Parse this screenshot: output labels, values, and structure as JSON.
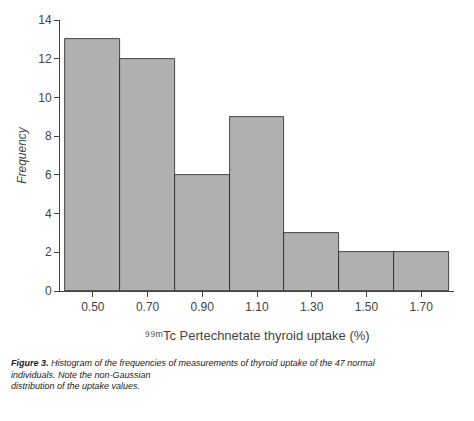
{
  "chart_data": {
    "type": "histogram",
    "bins": [
      0.4,
      0.6,
      0.8,
      1.0,
      1.2,
      1.4,
      1.6,
      1.8
    ],
    "values": [
      13,
      12,
      6,
      9,
      3,
      2,
      2
    ],
    "color": "#b0b0b0",
    "xlabel": "⁹⁹ᵐTc Pertechnetate thyroid uptake (%)",
    "ylabel": "Frequency",
    "xlim": [
      0.38,
      1.82
    ],
    "xticks": [
      {
        "value": 0.5,
        "label": "0.50"
      },
      {
        "value": 0.7,
        "label": "0.70"
      },
      {
        "value": 0.9,
        "label": "0.90"
      },
      {
        "value": 1.1,
        "label": "1.10"
      },
      {
        "value": 1.3,
        "label": "1.30"
      },
      {
        "value": 1.5,
        "label": "1.50"
      },
      {
        "value": 1.7,
        "label": "1.70"
      }
    ],
    "ylim": [
      0,
      14
    ],
    "yticks": [
      0,
      2,
      4,
      6,
      8,
      10,
      12,
      14
    ],
    "grid": false,
    "annotations": [
      "Figure 3.",
      "Histogram of the frequencies of measurements of thyroid uptake of the 47 normal individuals. Note the non-Gaussian\ndistribution of the uptake values."
    ]
  }
}
